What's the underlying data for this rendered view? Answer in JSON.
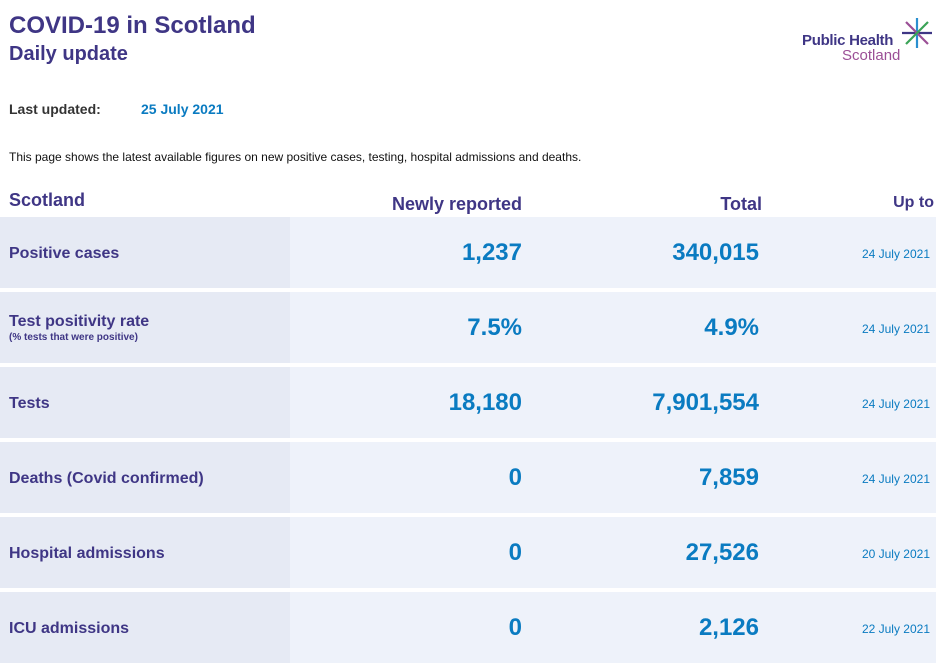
{
  "header": {
    "title": "COVID-19 in Scotland",
    "subtitle": "Daily update",
    "logo": {
      "line1": "Public Health",
      "line2": "Scotland",
      "icon": "star-icon"
    }
  },
  "updated": {
    "label": "Last updated:",
    "value": "25 July 2021"
  },
  "intro": "This page shows the latest available figures on new positive cases, testing, hospital admissions and deaths.",
  "table": {
    "columns": {
      "region": "Scotland",
      "newly_reported": "Newly reported",
      "total": "Total",
      "up_to": "Up to"
    },
    "rows": [
      {
        "label": "Positive cases",
        "sublabel": "",
        "new": "1,237",
        "total": "340,015",
        "date": "24 July 2021"
      },
      {
        "label": "Test positivity rate",
        "sublabel": "(% tests that were positive)",
        "new": "7.5%",
        "total": "4.9%",
        "date": "24 July 2021"
      },
      {
        "label": "Tests",
        "sublabel": "",
        "new": "18,180",
        "total": "7,901,554",
        "date": "24 July 2021"
      },
      {
        "label": "Deaths (Covid confirmed)",
        "sublabel": "",
        "new": "0",
        "total": "7,859",
        "date": "24 July 2021"
      },
      {
        "label": "Hospital admissions",
        "sublabel": "",
        "new": "0",
        "total": "27,526",
        "date": "20 July 2021"
      },
      {
        "label": "ICU admissions",
        "sublabel": "",
        "new": "0",
        "total": "2,126",
        "date": "22 July 2021"
      }
    ]
  },
  "colors": {
    "brand_purple": "#3f3685",
    "accent_blue": "#0a7bc1",
    "logo_magenta": "#9b4f96",
    "row_bg": "#eef2fa",
    "label_bg": "#e6eaf4"
  }
}
